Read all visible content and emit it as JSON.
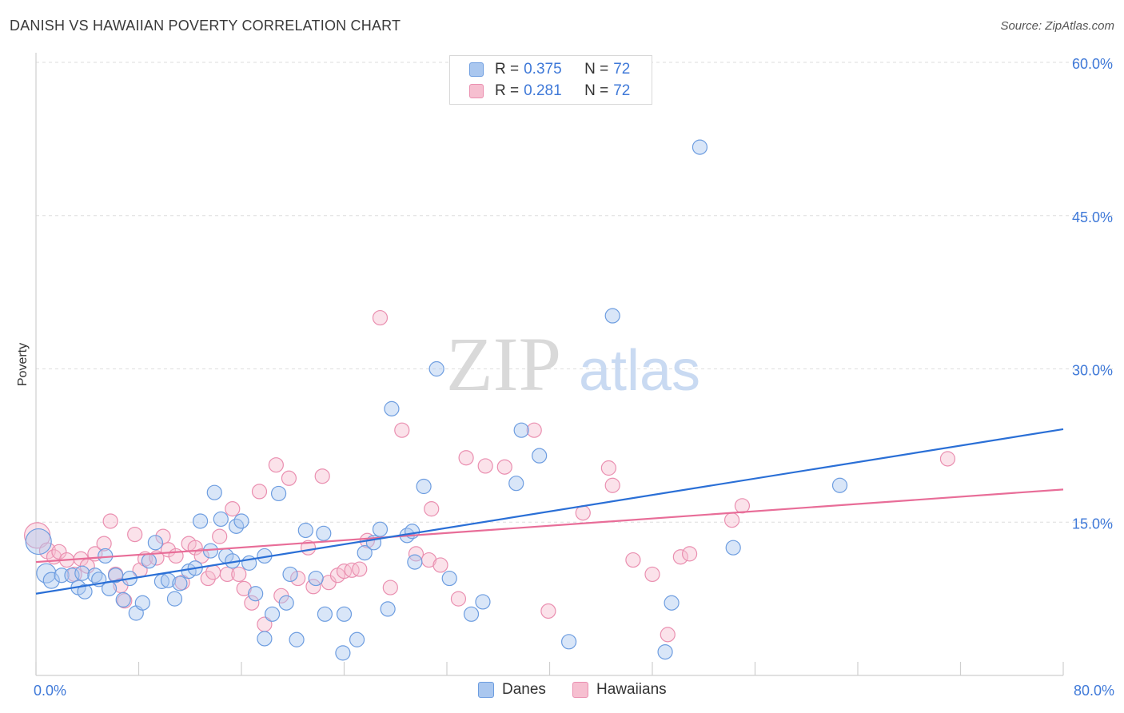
{
  "title": "DANISH VS HAWAIIAN POVERTY CORRELATION CHART",
  "source": "Source: ZipAtlas.com",
  "watermark": {
    "zip": "ZIP",
    "atlas": "atlas"
  },
  "colors": {
    "blue_fill": "#aac7ef",
    "blue_stroke": "#6d9de0",
    "blue_line": "#2a6fd6",
    "pink_fill": "#f6bfd0",
    "pink_stroke": "#ea8fb0",
    "pink_line": "#e86d98",
    "tick_text": "#3f79d8",
    "grid": "#dedede"
  },
  "legend_top": [
    {
      "r_label": "R =",
      "r_value": "0.375",
      "n_label": "N =",
      "n_value": "72"
    },
    {
      "r_label": "R =",
      "r_value": "0.281",
      "n_label": "N =",
      "n_value": "72"
    }
  ],
  "legend_bottom": [
    {
      "label": "Danes"
    },
    {
      "label": "Hawaiians"
    }
  ],
  "chart_data": {
    "type": "scatter",
    "title": "DANISH VS HAWAIIAN POVERTY CORRELATION CHART",
    "xlabel": "",
    "ylabel": "Poverty",
    "xlim": [
      0,
      80
    ],
    "ylim": [
      0,
      60
    ],
    "x_tick_labels": [
      "0.0%",
      "80.0%"
    ],
    "y_ticks": [
      15,
      30,
      45,
      60
    ],
    "y_tick_labels": [
      "15.0%",
      "30.0%",
      "45.0%",
      "60.0%"
    ],
    "legend_position": "top-center",
    "series": [
      {
        "name": "Danes",
        "r": 0.375,
        "n": 72,
        "trend": {
          "x": [
            0,
            80
          ],
          "y": [
            8.0,
            24.1
          ]
        },
        "points": [
          [
            0.2,
            13.1,
            16
          ],
          [
            0.8,
            10.0,
            12
          ],
          [
            1.2,
            9.3,
            10
          ],
          [
            2.0,
            9.8,
            9
          ],
          [
            2.8,
            9.8,
            9
          ],
          [
            3.3,
            8.6,
            9
          ],
          [
            3.6,
            10.0,
            9
          ],
          [
            3.8,
            8.2,
            9
          ],
          [
            4.6,
            9.8,
            9
          ],
          [
            4.9,
            9.4,
            9
          ],
          [
            5.4,
            11.7,
            9
          ],
          [
            5.7,
            8.5,
            9
          ],
          [
            6.2,
            9.8,
            9
          ],
          [
            6.8,
            7.4,
            9
          ],
          [
            7.3,
            9.5,
            9
          ],
          [
            7.8,
            6.1,
            9
          ],
          [
            8.3,
            7.1,
            9
          ],
          [
            8.8,
            11.2,
            9
          ],
          [
            9.3,
            13.0,
            9
          ],
          [
            9.8,
            9.2,
            9
          ],
          [
            10.3,
            9.3,
            9
          ],
          [
            10.8,
            7.5,
            9
          ],
          [
            11.2,
            9.0,
            9
          ],
          [
            11.9,
            10.2,
            9
          ],
          [
            12.4,
            10.5,
            9
          ],
          [
            12.8,
            15.1,
            9
          ],
          [
            13.6,
            12.2,
            9
          ],
          [
            13.9,
            17.9,
            9
          ],
          [
            14.4,
            15.3,
            9
          ],
          [
            14.8,
            11.7,
            9
          ],
          [
            15.3,
            11.2,
            9
          ],
          [
            15.6,
            14.6,
            9
          ],
          [
            16.0,
            15.1,
            9
          ],
          [
            16.6,
            11.0,
            9
          ],
          [
            17.1,
            8.0,
            9
          ],
          [
            17.8,
            11.7,
            9
          ],
          [
            18.4,
            6.0,
            9
          ],
          [
            18.9,
            17.8,
            9
          ],
          [
            17.8,
            3.6,
            9
          ],
          [
            19.5,
            7.1,
            9
          ],
          [
            19.8,
            9.9,
            9
          ],
          [
            20.3,
            3.5,
            9
          ],
          [
            21.0,
            14.2,
            9
          ],
          [
            21.8,
            9.5,
            9
          ],
          [
            22.4,
            13.9,
            9
          ],
          [
            22.5,
            6.0,
            9
          ],
          [
            23.9,
            2.2,
            9
          ],
          [
            24.0,
            6.0,
            9
          ],
          [
            25.0,
            3.5,
            9
          ],
          [
            25.6,
            12.0,
            9
          ],
          [
            26.3,
            13.0,
            9
          ],
          [
            26.8,
            14.3,
            9
          ],
          [
            27.4,
            6.5,
            9
          ],
          [
            27.7,
            26.1,
            9
          ],
          [
            28.9,
            13.7,
            9
          ],
          [
            29.3,
            14.1,
            9
          ],
          [
            29.5,
            11.1,
            9
          ],
          [
            30.2,
            18.5,
            9
          ],
          [
            31.2,
            30.0,
            9
          ],
          [
            32.2,
            9.5,
            9
          ],
          [
            33.9,
            6.0,
            9
          ],
          [
            34.8,
            7.2,
            9
          ],
          [
            37.4,
            18.8,
            9
          ],
          [
            37.8,
            24.0,
            9
          ],
          [
            39.2,
            21.5,
            9
          ],
          [
            41.5,
            3.3,
            9
          ],
          [
            44.9,
            35.2,
            9
          ],
          [
            49.0,
            2.3,
            9
          ],
          [
            49.5,
            7.1,
            9
          ],
          [
            51.7,
            51.7,
            9
          ],
          [
            54.3,
            12.5,
            9
          ],
          [
            62.6,
            18.6,
            9
          ]
        ]
      },
      {
        "name": "Hawaiians",
        "r": 0.281,
        "n": 72,
        "trend": {
          "x": [
            0,
            80
          ],
          "y": [
            11.1,
            18.2
          ]
        },
        "points": [
          [
            0.1,
            13.7,
            16
          ],
          [
            0.9,
            12.2,
            10
          ],
          [
            1.4,
            11.6,
            9
          ],
          [
            1.8,
            12.1,
            9
          ],
          [
            2.4,
            11.3,
            9
          ],
          [
            3.0,
            9.9,
            9
          ],
          [
            3.5,
            11.4,
            9
          ],
          [
            4.0,
            10.7,
            9
          ],
          [
            4.6,
            11.9,
            9
          ],
          [
            5.3,
            12.9,
            9
          ],
          [
            5.8,
            15.1,
            9
          ],
          [
            6.2,
            9.9,
            9
          ],
          [
            6.6,
            8.8,
            9
          ],
          [
            6.9,
            7.3,
            9
          ],
          [
            7.7,
            13.8,
            9
          ],
          [
            8.1,
            10.3,
            9
          ],
          [
            8.5,
            11.4,
            9
          ],
          [
            9.4,
            11.5,
            9
          ],
          [
            9.9,
            13.6,
            9
          ],
          [
            10.3,
            12.3,
            9
          ],
          [
            10.9,
            11.7,
            9
          ],
          [
            11.4,
            9.1,
            9
          ],
          [
            11.9,
            12.9,
            9
          ],
          [
            12.4,
            12.5,
            9
          ],
          [
            12.9,
            11.7,
            9
          ],
          [
            13.4,
            9.5,
            9
          ],
          [
            13.8,
            10.1,
            9
          ],
          [
            14.3,
            13.6,
            9
          ],
          [
            14.9,
            9.9,
            9
          ],
          [
            15.3,
            16.3,
            9
          ],
          [
            15.8,
            9.9,
            9
          ],
          [
            16.2,
            8.5,
            9
          ],
          [
            16.8,
            7.1,
            9
          ],
          [
            17.4,
            18.0,
            9
          ],
          [
            17.8,
            5.0,
            9
          ],
          [
            18.7,
            20.6,
            9
          ],
          [
            19.1,
            7.8,
            9
          ],
          [
            19.7,
            19.3,
            9
          ],
          [
            20.4,
            9.5,
            9
          ],
          [
            21.2,
            12.5,
            9
          ],
          [
            21.6,
            8.7,
            9
          ],
          [
            22.3,
            19.5,
            9
          ],
          [
            22.8,
            9.1,
            9
          ],
          [
            23.5,
            9.8,
            9
          ],
          [
            24.0,
            10.2,
            9
          ],
          [
            24.6,
            10.3,
            9
          ],
          [
            25.2,
            10.4,
            9
          ],
          [
            25.8,
            13.2,
            9
          ],
          [
            26.8,
            35.0,
            9
          ],
          [
            27.6,
            8.6,
            9
          ],
          [
            28.5,
            24.0,
            9
          ],
          [
            29.6,
            11.9,
            9
          ],
          [
            30.6,
            11.3,
            9
          ],
          [
            30.8,
            16.3,
            9
          ],
          [
            31.5,
            10.8,
            9
          ],
          [
            32.9,
            7.5,
            9
          ],
          [
            33.5,
            21.3,
            9
          ],
          [
            35.0,
            20.5,
            9
          ],
          [
            36.5,
            20.4,
            9
          ],
          [
            38.8,
            24.0,
            9
          ],
          [
            39.9,
            6.3,
            9
          ],
          [
            42.6,
            15.9,
            9
          ],
          [
            44.6,
            20.3,
            9
          ],
          [
            44.9,
            18.6,
            9
          ],
          [
            46.5,
            11.3,
            9
          ],
          [
            48.0,
            9.9,
            9
          ],
          [
            49.2,
            4.0,
            9
          ],
          [
            50.2,
            11.6,
            9
          ],
          [
            50.9,
            11.9,
            9
          ],
          [
            54.2,
            15.2,
            9
          ],
          [
            55.0,
            16.6,
            9
          ],
          [
            71.0,
            21.2,
            9
          ]
        ]
      }
    ]
  }
}
